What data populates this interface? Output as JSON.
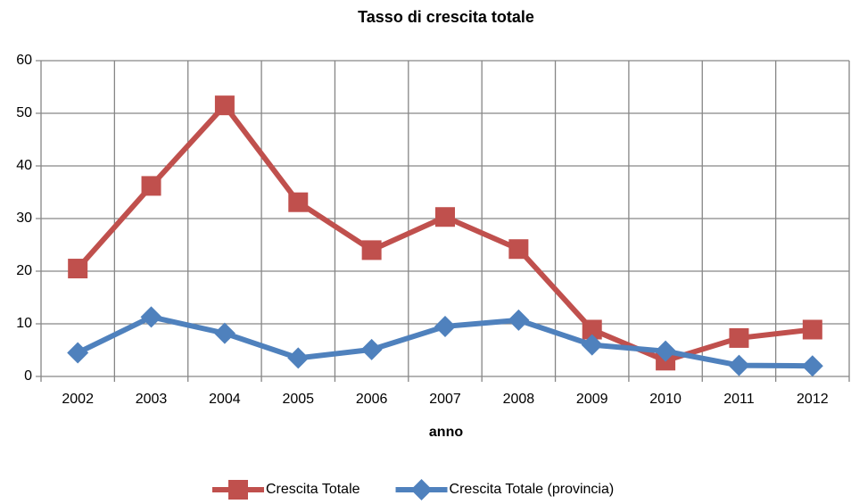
{
  "chart_data": {
    "type": "line",
    "title": "Tasso di crescita totale",
    "x_label": "anno",
    "categories": [
      "2002",
      "2003",
      "2004",
      "2005",
      "2006",
      "2007",
      "2008",
      "2009",
      "2010",
      "2011",
      "2012"
    ],
    "series": [
      {
        "name": "Crescita Totale",
        "color": "#c0504d",
        "marker": "square",
        "values": [
          20.5,
          36.2,
          51.5,
          33.1,
          24,
          30.3,
          24.2,
          8.9,
          3,
          7.3,
          8.9
        ]
      },
      {
        "name": "Crescita Totale (provincia)",
        "color": "#4f81bd",
        "marker": "diamond",
        "values": [
          4.5,
          11.3,
          8.2,
          3.5,
          5.1,
          9.5,
          10.7,
          6,
          4.8,
          2.1,
          2
        ]
      }
    ],
    "ylim": [
      0,
      60
    ],
    "yticks": [
      0,
      10,
      20,
      30,
      40,
      50,
      60
    ],
    "grid": true,
    "legend": "bottom"
  }
}
